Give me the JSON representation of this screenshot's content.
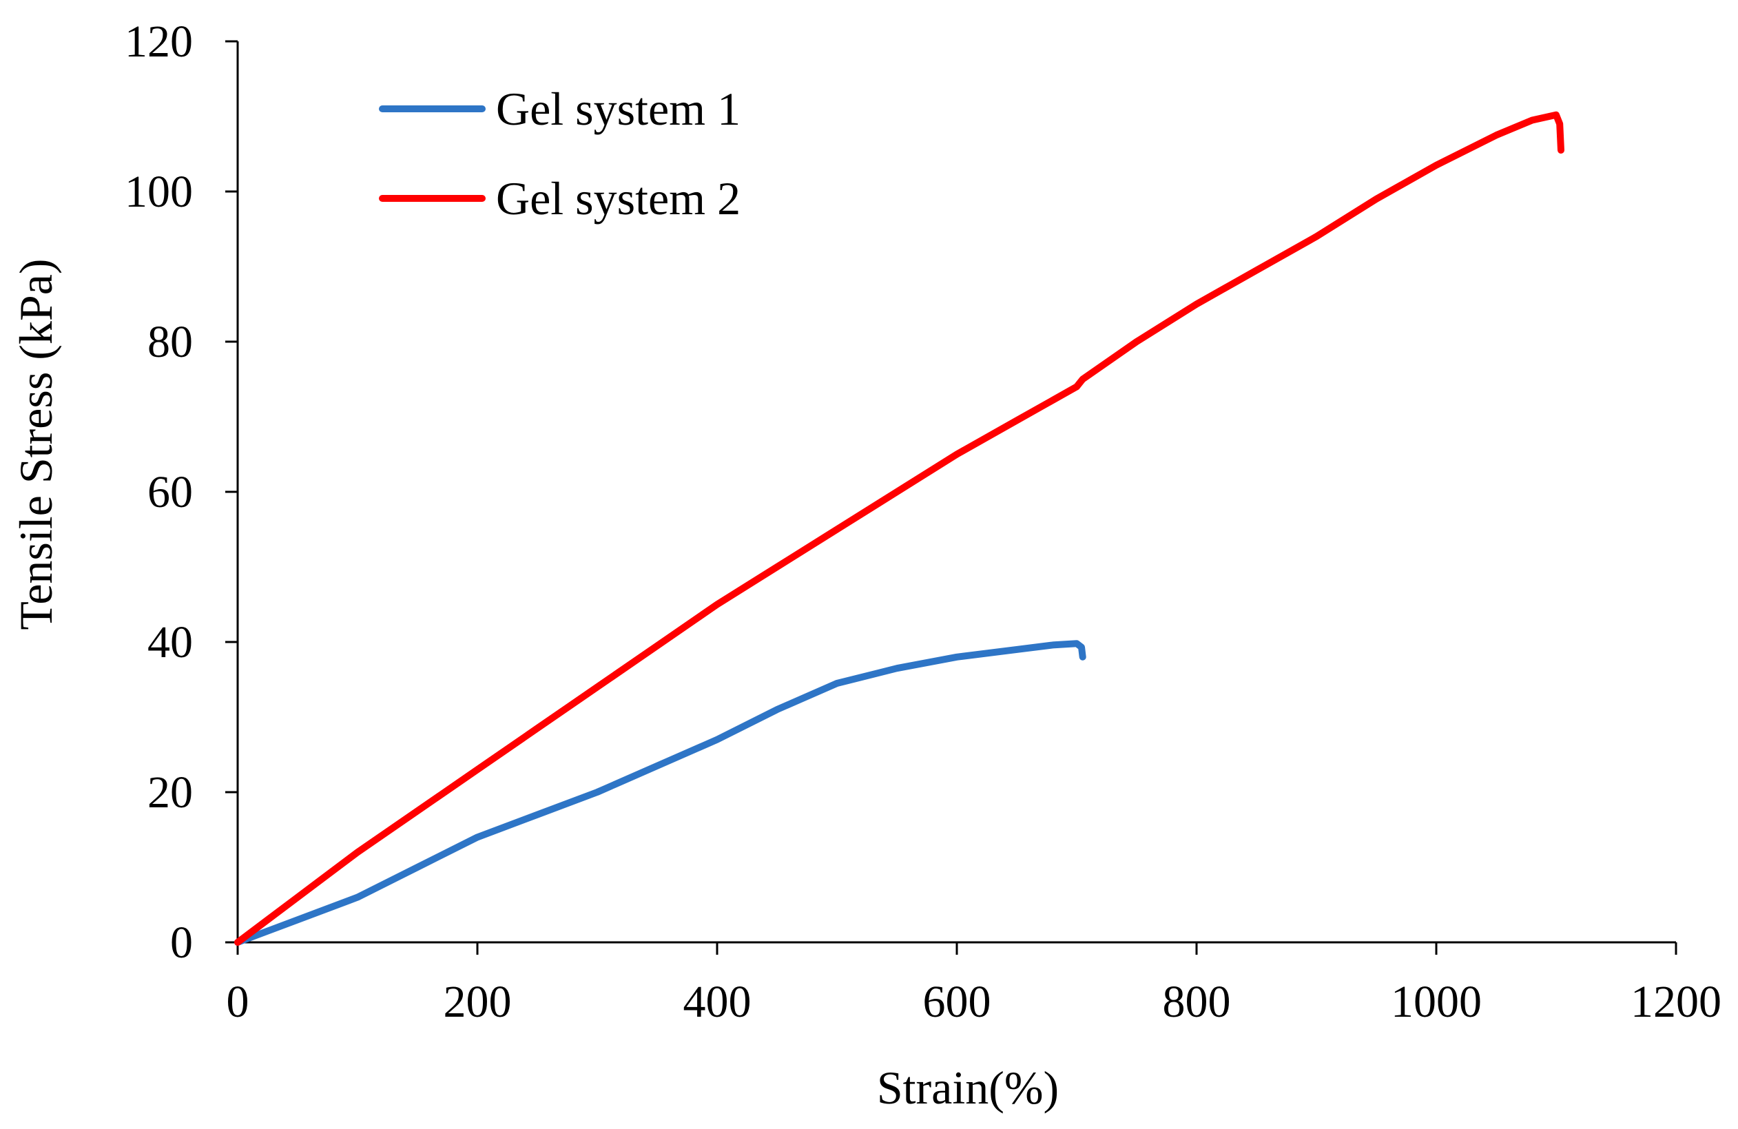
{
  "chart_data": {
    "type": "line",
    "title": "",
    "xlabel": "Strain(%)",
    "ylabel": "Tensile Stress (kPa)",
    "xlim": [
      0,
      1200
    ],
    "ylim": [
      0,
      120
    ],
    "xticks": [
      0,
      200,
      400,
      600,
      800,
      1000,
      1200
    ],
    "yticks": [
      0,
      20,
      40,
      60,
      80,
      100,
      120
    ],
    "xtick_labels": [
      "0",
      "200",
      "400",
      "600",
      "800",
      "1000",
      "1200"
    ],
    "ytick_labels": [
      "0",
      "20",
      "40",
      "60",
      "80",
      "100",
      "120"
    ],
    "grid": false,
    "legend_position": "top-left",
    "series": [
      {
        "name": "Gel system 1",
        "color": "#2e75c6",
        "x": [
          0,
          50,
          100,
          150,
          200,
          250,
          300,
          350,
          400,
          450,
          500,
          550,
          600,
          650,
          680,
          700,
          704,
          705
        ],
        "y": [
          0,
          3,
          6,
          10,
          14,
          17,
          20,
          23.5,
          27,
          31,
          34.5,
          36.5,
          38,
          39,
          39.6,
          39.8,
          39.3,
          38
        ]
      },
      {
        "name": "Gel system 2",
        "color": "#ff0000",
        "x": [
          0,
          50,
          100,
          150,
          200,
          250,
          300,
          350,
          400,
          450,
          500,
          550,
          600,
          650,
          700,
          705,
          750,
          800,
          850,
          900,
          950,
          1000,
          1050,
          1080,
          1100,
          1103,
          1104
        ],
        "y": [
          0,
          6,
          12,
          17.5,
          23,
          28.5,
          34,
          39.5,
          45,
          50,
          55,
          60,
          65,
          69.5,
          74,
          75,
          80,
          85,
          89.5,
          94,
          99,
          103.5,
          107.5,
          109.5,
          110.2,
          109,
          105.5
        ]
      }
    ]
  }
}
